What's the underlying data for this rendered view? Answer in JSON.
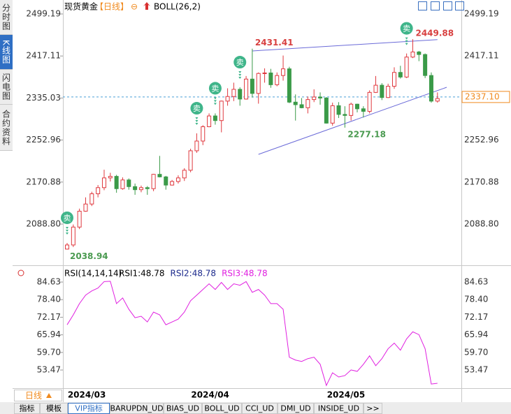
{
  "sidebar_tabs": [
    "分时图",
    "K线图",
    "闪电图",
    "合约资料"
  ],
  "footer": {
    "period_button": "日线",
    "tabs": [
      "指标",
      "模板",
      "VIP指标",
      "BARUPDN_UD",
      "BIAS_UD",
      "BOLL_UD",
      "CCI_UD",
      "DMI_UD",
      "INSIDE_UD",
      ">>"
    ],
    "selected_tab": 2
  },
  "chart_data": [
    {
      "type": "candlestick",
      "title": "现货黄金",
      "period_tag": "【日线】",
      "indicator": "BOLL(26,2)",
      "categories": [
        null,
        "2024/03",
        null,
        null,
        null,
        null,
        null,
        null,
        null,
        null,
        null,
        null,
        null,
        null,
        null,
        null,
        null,
        null,
        null,
        null,
        null,
        "2024/04",
        null,
        null,
        null,
        null,
        null,
        null,
        null,
        null,
        null,
        null,
        null,
        null,
        null,
        null,
        null,
        null,
        null,
        null,
        null,
        null,
        null,
        "2024/05",
        null,
        null,
        null,
        null,
        null,
        null,
        null,
        null,
        null,
        null,
        null,
        null,
        null,
        null,
        null,
        null,
        null
      ],
      "open": [
        2040,
        2048,
        2083,
        2114,
        2128,
        2148,
        2160,
        2179,
        2182,
        2158,
        2175,
        2162,
        2156,
        2160,
        2158,
        2186,
        2181,
        2165,
        2172,
        2179,
        2194,
        2232,
        2251,
        2279,
        2300,
        2291,
        2329,
        2338,
        2352,
        2333,
        2372,
        2344,
        2383,
        2384,
        2361,
        2379,
        2392,
        2327,
        2322,
        2316,
        2332,
        2337,
        2335,
        2286,
        2320,
        2303,
        2301,
        2323,
        2314,
        2309,
        2346,
        2360,
        2336,
        2358,
        2385,
        2376,
        2415,
        2425,
        2420,
        2379,
        2329
      ],
      "high": [
        2052,
        2088,
        2119,
        2141,
        2152,
        2165,
        2195,
        2189,
        2185,
        2180,
        2178,
        2168,
        2164,
        2163,
        2187,
        2222,
        2183,
        2175,
        2184,
        2198,
        2236,
        2266,
        2282,
        2305,
        2305,
        2330,
        2354,
        2365,
        2356,
        2378,
        2431.41,
        2385,
        2393,
        2392,
        2385,
        2418,
        2396,
        2342,
        2335,
        2338,
        2352,
        2346,
        2337,
        2326,
        2327,
        2319,
        2326,
        2324,
        2319,
        2350,
        2378,
        2364,
        2363,
        2395,
        2398,
        2422,
        2449.88,
        2427,
        2422,
        2385,
        2346
      ],
      "low": [
        2038.94,
        2044,
        2079,
        2113,
        2124,
        2141,
        2155,
        2172,
        2150,
        2156,
        2156,
        2146,
        2151,
        2146,
        2153,
        2180,
        2156,
        2164,
        2168,
        2173,
        2190,
        2228,
        2243,
        2278,
        2283,
        2268,
        2320,
        2329,
        2320,
        2332,
        2336,
        2324,
        2365,
        2355,
        2358,
        2369,
        2325,
        2291,
        2315,
        2305,
        2327,
        2322,
        2285,
        2281,
        2296,
        2277.18,
        2291,
        2307,
        2297,
        2305,
        2345,
        2331,
        2335,
        2353,
        2373,
        2374,
        2413,
        2407,
        2374,
        2326,
        2326
      ],
      "close": [
        2048,
        2083,
        2114,
        2128,
        2148,
        2160,
        2179,
        2182,
        2158,
        2175,
        2162,
        2156,
        2160,
        2158,
        2186,
        2181,
        2165,
        2172,
        2179,
        2194,
        2232,
        2251,
        2279,
        2300,
        2291,
        2329,
        2338,
        2352,
        2333,
        2372,
        2344,
        2383,
        2384,
        2361,
        2379,
        2392,
        2327,
        2322,
        2316,
        2332,
        2337,
        2335,
        2286,
        2320,
        2303,
        2301,
        2323,
        2314,
        2309,
        2346,
        2360,
        2336,
        2358,
        2385,
        2376,
        2415,
        2425,
        2420,
        2379,
        2329,
        2334
      ],
      "up_color": "#e0383e",
      "down_color": "#3a9a48",
      "ylim": [
        2011.06,
        2519.64
      ],
      "yticks": [
        2499.19,
        2417.11,
        2335.03,
        2252.96,
        2170.88,
        {
          "value": 2088.8,
          "label": "2088.80"
        }
      ],
      "annotations": [
        {
          "index": 30,
          "value": 2431.41,
          "color": "#d84040"
        },
        {
          "index": 56,
          "value": 2449.88,
          "color": "#d84040"
        },
        {
          "index": 0,
          "value": 2038.94,
          "color": "#4a9a50"
        },
        {
          "index": 45,
          "value": 2277.18,
          "color": "#4a9a50"
        }
      ],
      "signals": [
        {
          "index": 0,
          "label": "卖"
        },
        {
          "index": 21,
          "label": "卖"
        },
        {
          "index": 24,
          "label": "卖"
        },
        {
          "index": 28,
          "label": "卖"
        },
        {
          "index": 55,
          "label": "卖"
        }
      ],
      "trendlines": [
        {
          "x": [
            30,
            60
          ],
          "y": [
            2427,
            2449
          ],
          "color": "#6a6ad8"
        },
        {
          "x": [
            31,
            61.5
          ],
          "y": [
            2225,
            2356
          ],
          "color": "#6a6ad8"
        }
      ],
      "current_price": {
        "value": 2337.1,
        "label": "2337.10"
      },
      "current_color": "#f08a1e"
    },
    {
      "type": "line",
      "title": "RSI(14,14,14)",
      "legend": [
        {
          "text": "RSI1:48.78",
          "color": "#000000"
        },
        {
          "text": "RSI2:48.78",
          "color": "#1c2a8c"
        },
        {
          "text": "RSI3:48.78",
          "color": "#e020e0"
        }
      ],
      "series": [
        {
          "color": "#e020e0",
          "values": [
            69.5,
            73,
            77,
            80,
            81.5,
            82.5,
            84.8,
            84.9,
            77,
            79,
            75,
            72,
            72.5,
            70.5,
            74,
            73,
            69.5,
            70.5,
            71.5,
            74,
            78,
            80,
            82,
            84,
            82,
            84.5,
            82,
            84,
            83.5,
            84.8,
            81,
            82,
            80,
            77,
            77,
            75,
            58,
            57,
            56.5,
            57.5,
            58,
            55.5,
            48,
            52.5,
            51,
            51.5,
            53.5,
            53,
            55.5,
            58.5,
            55,
            57.5,
            61,
            63,
            60.5,
            64.5,
            67,
            66,
            61,
            48.5,
            48.78
          ]
        }
      ],
      "ylim": [
        47.29,
        89.33
      ],
      "yticks": [
        84.63,
        {
          "value": 78.4,
          "label": "78.40"
        },
        72.17,
        65.94,
        {
          "value": 59.7,
          "label": "59.70"
        },
        53.47
      ]
    }
  ]
}
